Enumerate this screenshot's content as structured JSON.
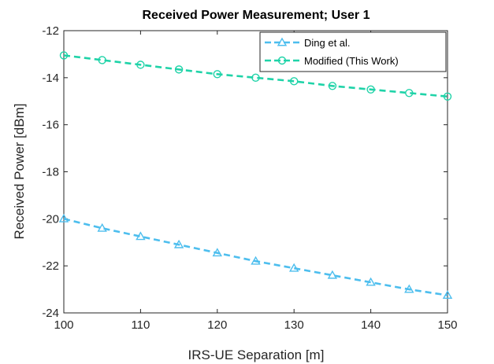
{
  "chart_data": {
    "type": "line",
    "title": "Received Power Measurement; User 1",
    "xlabel": "IRS-UE Separation [m]",
    "ylabel": "Received Power [dBm]",
    "xlim": [
      100,
      150
    ],
    "ylim": [
      -24,
      -12
    ],
    "xticks": [
      100,
      110,
      120,
      130,
      140,
      150
    ],
    "yticks": [
      -24,
      -22,
      -20,
      -18,
      -16,
      -14,
      -12
    ],
    "grid": false,
    "legend_position": "top-right",
    "x": [
      100,
      105,
      110,
      115,
      120,
      125,
      130,
      135,
      140,
      145,
      150
    ],
    "series": [
      {
        "name": "Ding et al.",
        "marker": "triangle",
        "line_style": "dashed",
        "color": "#4DBEEE",
        "values": [
          -20.0,
          -20.4,
          -20.75,
          -21.1,
          -21.45,
          -21.8,
          -22.1,
          -22.4,
          -22.7,
          -23.0,
          -23.25
        ]
      },
      {
        "name": "Modified (This Work)",
        "marker": "circle",
        "line_style": "dashed",
        "color": "#1FD3A8",
        "values": [
          -13.05,
          -13.25,
          -13.45,
          -13.65,
          -13.85,
          -14.0,
          -14.15,
          -14.35,
          -14.5,
          -14.65,
          -14.8
        ]
      }
    ]
  }
}
